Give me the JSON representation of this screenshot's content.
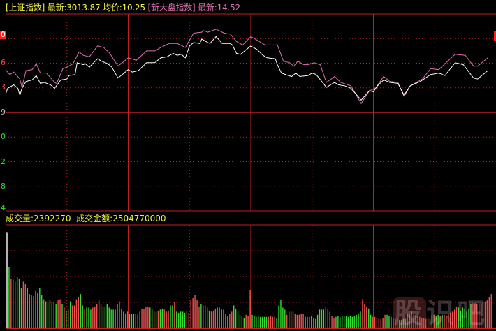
{
  "header": {
    "index_name": "[上证指数]",
    "latest_label": "最新:",
    "latest_value": "3013.87",
    "avg_label": "均价:",
    "avg_value": "10.25",
    "index2_name": "[新大盘指数]",
    "latest2_label": "最新:",
    "latest2_value": "14.52"
  },
  "volume_header": {
    "volume_label": "成交量:",
    "volume_value": "2392270",
    "amount_label": "成交金额:",
    "amount_value": "2504770000"
  },
  "y_axis_fragments": [
    "0",
    "6",
    "3",
    "9",
    "0",
    "2",
    "8",
    "4"
  ],
  "watermark": "股识吧",
  "colors": {
    "background": "#000000",
    "grid": "#c02020",
    "index_line": "#ffffff",
    "index2_line": "#e070b0",
    "up_bar": "#f05050",
    "down_bar": "#30e030",
    "text_yellow": "#f0f040"
  },
  "chart_data": [
    {
      "type": "line",
      "xlabel": "",
      "ylabel": "",
      "xlim": [
        0,
        240
      ],
      "ylim": [
        -2,
        2
      ],
      "grid": true,
      "series": [
        {
          "name": "上证指数",
          "color": "#ffffff",
          "x": [
            0,
            1,
            4,
            6,
            7,
            8,
            10,
            13,
            15,
            17,
            19,
            22,
            24,
            27,
            30,
            31,
            34,
            35,
            38,
            39,
            41,
            45,
            47,
            50,
            52,
            55,
            58,
            60,
            62,
            65,
            69,
            73,
            76,
            79,
            82,
            84,
            86,
            88,
            90,
            92,
            95,
            96,
            99,
            100,
            103,
            106,
            110,
            111,
            113,
            115,
            117,
            120,
            123,
            126,
            128,
            132,
            133,
            135,
            137,
            140,
            142,
            144,
            148,
            150,
            152,
            157,
            161,
            163,
            166,
            169,
            174,
            178,
            180,
            182,
            185,
            188,
            192,
            195,
            198,
            203,
            208,
            212,
            215,
            220,
            224,
            229,
            231,
            236
          ],
          "y": [
            0.37,
            0.49,
            0.56,
            0.49,
            0.35,
            0.49,
            0.63,
            0.66,
            0.75,
            0.59,
            0.61,
            0.56,
            0.49,
            0.66,
            0.68,
            0.75,
            0.77,
            1.01,
            0.97,
            0.99,
            0.92,
            1.09,
            1.04,
            0.99,
            0.92,
            0.7,
            0.8,
            0.87,
            0.82,
            0.85,
            1.01,
            1.01,
            1.11,
            1.13,
            1.2,
            1.16,
            1.18,
            1.11,
            1.35,
            1.42,
            1.4,
            1.49,
            1.42,
            1.4,
            1.54,
            1.4,
            1.4,
            1.37,
            1.2,
            1.18,
            1.25,
            1.35,
            1.28,
            1.16,
            1.11,
            1.09,
            0.97,
            0.8,
            0.77,
            0.73,
            0.8,
            0.73,
            0.75,
            0.8,
            0.77,
            0.51,
            0.61,
            0.56,
            0.54,
            0.49,
            0.25,
            0.44,
            0.42,
            0.54,
            0.66,
            0.61,
            0.59,
            0.35,
            0.54,
            0.63,
            0.77,
            0.8,
            0.75,
            1.01,
            0.97,
            0.7,
            0.68,
            0.85
          ]
        },
        {
          "name": "新大盘指数",
          "color": "#e070b0",
          "x": [
            0,
            2,
            4,
            7,
            8,
            10,
            13,
            15,
            17,
            20,
            24,
            25,
            28,
            30,
            33,
            36,
            38,
            41,
            45,
            48,
            51,
            55,
            58,
            60,
            64,
            69,
            73,
            76,
            80,
            84,
            88,
            92,
            96,
            97,
            99,
            103,
            107,
            110,
            113,
            116,
            120,
            123,
            127,
            133,
            136,
            139,
            141,
            143,
            146,
            148,
            151,
            154,
            157,
            161,
            164,
            169,
            174,
            178,
            181,
            185,
            188,
            192,
            195,
            198,
            204,
            208,
            212,
            220,
            225,
            229,
            231,
            236
          ],
          "y": [
            0.87,
            0.77,
            0.82,
            0.68,
            0.51,
            0.85,
            0.87,
            0.99,
            0.8,
            0.8,
            0.61,
            0.59,
            0.89,
            0.92,
            0.99,
            1.23,
            1.16,
            1.13,
            1.35,
            1.32,
            1.2,
            0.94,
            1.04,
            1.11,
            1.06,
            1.25,
            1.25,
            1.32,
            1.4,
            1.4,
            1.32,
            1.61,
            1.63,
            1.66,
            1.63,
            1.69,
            1.61,
            1.59,
            1.44,
            1.37,
            1.54,
            1.47,
            1.37,
            1.37,
            1.04,
            1.01,
            0.94,
            1.04,
            0.97,
            0.97,
            1.01,
            0.97,
            0.61,
            0.73,
            0.61,
            0.54,
            0.18,
            0.44,
            0.49,
            0.73,
            0.63,
            0.61,
            0.32,
            0.54,
            0.68,
            0.89,
            0.87,
            1.18,
            1.16,
            0.94,
            0.94,
            1.11
          ]
        }
      ]
    },
    {
      "type": "bar",
      "title": "成交量",
      "xlim": [
        0,
        240
      ],
      "ylim": [
        0,
        100
      ],
      "grid": true,
      "values": [
        93,
        59,
        48,
        47,
        45,
        50,
        48,
        39,
        45,
        43,
        39,
        33,
        32,
        31,
        36,
        34,
        39,
        32,
        28,
        26,
        26,
        27,
        25,
        25,
        23,
        27,
        28,
        23,
        20,
        17,
        19,
        26,
        22,
        22,
        28,
        30,
        33,
        22,
        19,
        20,
        20,
        18,
        20,
        21,
        23,
        27,
        23,
        21,
        21,
        23,
        20,
        18,
        18,
        18,
        23,
        26,
        19,
        16,
        14,
        16,
        14,
        14,
        14,
        14,
        14,
        16,
        19,
        19,
        21,
        21,
        20,
        18,
        16,
        16,
        17,
        18,
        19,
        18,
        16,
        17,
        22,
        22,
        25,
        16,
        15,
        16,
        16,
        15,
        17,
        15,
        27,
        29,
        32,
        27,
        21,
        23,
        22,
        22,
        20,
        17,
        16,
        17,
        19,
        20,
        20,
        18,
        18,
        14,
        12,
        14,
        16,
        22,
        19,
        16,
        13,
        12,
        10,
        13,
        12,
        37,
        13,
        12,
        11,
        12,
        11,
        11,
        11,
        11,
        11,
        12,
        11,
        11,
        10,
        22,
        27,
        20,
        18,
        13,
        16,
        16,
        16,
        14,
        13,
        13,
        14,
        14,
        11,
        11,
        11,
        12,
        10,
        9,
        13,
        18,
        18,
        18,
        21,
        19,
        16,
        12,
        10,
        11,
        12,
        11,
        12,
        12,
        12,
        11,
        12,
        11,
        12,
        13,
        14,
        16,
        28,
        23,
        21,
        19,
        13,
        11,
        11,
        10,
        10,
        9,
        10,
        13,
        13,
        12,
        11,
        10,
        9,
        9,
        8,
        8,
        9,
        9,
        14,
        14,
        16,
        13,
        13,
        12,
        11,
        10,
        10,
        9,
        10,
        9,
        13,
        13,
        12,
        13,
        12,
        13,
        13,
        12,
        14,
        15,
        16,
        18,
        21,
        20,
        17,
        20,
        19,
        16,
        19,
        23,
        24,
        24,
        23,
        24,
        24,
        25,
        26,
        27,
        30,
        33
      ],
      "colors": [
        "w",
        "g",
        "r",
        "r",
        "r",
        "g",
        "g",
        "g",
        "r",
        "r",
        "g",
        "g",
        "r",
        "r",
        "r",
        "g",
        "g",
        "g",
        "r",
        "g",
        "g",
        "g",
        "g",
        "g",
        "g",
        "r",
        "r",
        "g",
        "r",
        "g",
        "r",
        "g",
        "r",
        "r",
        "r",
        "r",
        "g",
        "g",
        "r",
        "g",
        "g",
        "g",
        "r",
        "r",
        "r",
        "g",
        "r",
        "g",
        "g",
        "g",
        "g",
        "g",
        "g",
        "g",
        "g",
        "g",
        "r",
        "r",
        "r",
        "r",
        "g",
        "g",
        "g",
        "g",
        "r",
        "r",
        "r",
        "r",
        "r",
        "r",
        "g",
        "g",
        "r",
        "g",
        "r",
        "g",
        "g",
        "r",
        "r",
        "r",
        "g",
        "g",
        "r",
        "g",
        "g",
        "g",
        "g",
        "g",
        "r",
        "r",
        "r",
        "r",
        "r",
        "r",
        "r",
        "g",
        "r",
        "r",
        "g",
        "g",
        "r",
        "r",
        "r",
        "r",
        "r",
        "g",
        "g",
        "g",
        "g",
        "r",
        "r",
        "g",
        "g",
        "g",
        "g",
        "r",
        "g",
        "r",
        "r",
        "r",
        "g",
        "g",
        "g",
        "g",
        "g",
        "g",
        "g",
        "g",
        "r",
        "r",
        "r",
        "r",
        "g",
        "g",
        "g",
        "g",
        "g",
        "r",
        "g",
        "g",
        "r",
        "r",
        "r",
        "r",
        "r",
        "r",
        "g",
        "g",
        "r",
        "g",
        "r",
        "r",
        "g",
        "g",
        "g",
        "g",
        "r",
        "r",
        "r",
        "r",
        "r",
        "g",
        "g",
        "g",
        "g",
        "g",
        "g",
        "g",
        "g",
        "g",
        "g",
        "g",
        "g",
        "g",
        "r",
        "r",
        "r",
        "g",
        "g",
        "r",
        "r",
        "r",
        "r",
        "r",
        "r",
        "r",
        "g",
        "g",
        "g",
        "g",
        "r",
        "r",
        "g",
        "g",
        "g",
        "g",
        "r",
        "r",
        "r",
        "r",
        "r",
        "r",
        "r",
        "r",
        "r",
        "r",
        "r",
        "g",
        "g",
        "r",
        "g",
        "g",
        "r",
        "g",
        "r",
        "r",
        "r",
        "r",
        "r",
        "r",
        "r",
        "g",
        "g",
        "g",
        "g",
        "g",
        "g",
        "g",
        "r",
        "r",
        "r",
        "r",
        "r",
        "r",
        "r"
      ]
    }
  ]
}
